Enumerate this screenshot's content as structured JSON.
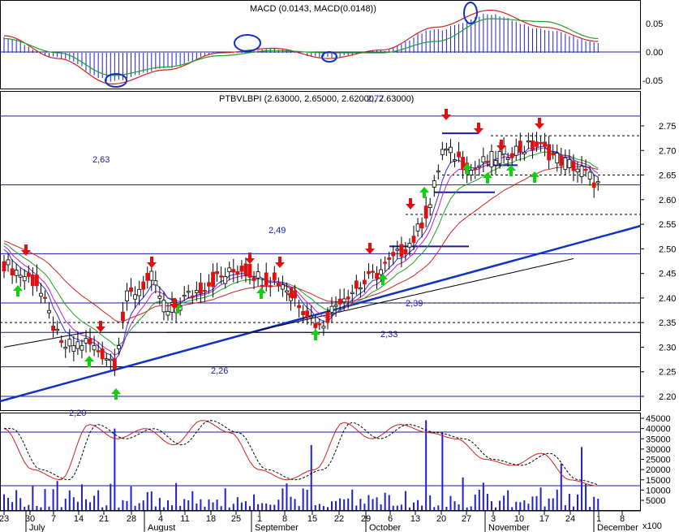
{
  "colors": {
    "hline": "#1a1aa6",
    "trend": "#1030c8",
    "ma_blue": "#3030e0",
    "ma_magenta": "#c020c0",
    "ma_green": "#20a020",
    "ma_red": "#d02020",
    "ma_black": "#000000",
    "candle_down": "#e01010",
    "volume": "#2020d0",
    "arrow_up": "#10d010",
    "arrow_down": "#e01010"
  },
  "macd_panel": {
    "title": "MACD (0.0143, MACD(0.0148))",
    "ticks": [
      "0.05",
      "0.00",
      "-0.05"
    ]
  },
  "price_panel": {
    "title": "PTBVLBPI (2.63000, 2.65000, 2.62000, 2.63000)",
    "ticks": [
      "2.75",
      "2.70",
      "2.65",
      "2.60",
      "2.55",
      "2.50",
      "2.45",
      "2.40",
      "2.35",
      "2.30",
      "2.25",
      "2.20"
    ],
    "level_labels": [
      "2,63",
      "2,49",
      "2,39",
      "2,33",
      "2,26",
      "2,20",
      "2,77"
    ]
  },
  "volume_panel": {
    "ticks": [
      "45000",
      "40000",
      "35000",
      "30000",
      "25000",
      "20000",
      "15000",
      "10000",
      "5000"
    ],
    "unit": "x100"
  },
  "x_axis": {
    "day_labels": [
      "23",
      "30",
      "7",
      "14",
      "21",
      "28",
      "4",
      "11",
      "18",
      "25",
      "1",
      "8",
      "15",
      "22",
      "29",
      "6",
      "13",
      "20",
      "27",
      "3",
      "10",
      "17",
      "24",
      "1",
      "8"
    ],
    "month_labels": [
      "July",
      "August",
      "September",
      "October",
      "November",
      "December"
    ]
  },
  "chart_data": [
    {
      "type": "line",
      "title": "MACD (0.0143, MACD(0.0148))",
      "ylim": [
        -0.07,
        0.09
      ],
      "x": [
        "Jun 23",
        "Jul 7",
        "Jul 21",
        "Aug 4",
        "Aug 18",
        "Sep 1",
        "Sep 15",
        "Sep 29",
        "Oct 13",
        "Oct 27",
        "Nov 10",
        "Nov 24"
      ],
      "series": [
        {
          "name": "MACD",
          "values": [
            0.03,
            -0.01,
            -0.055,
            -0.03,
            0.0,
            0.008,
            -0.01,
            0.005,
            0.045,
            0.075,
            0.045,
            0.02
          ]
        },
        {
          "name": "Signal",
          "values": [
            0.025,
            0.0,
            -0.04,
            -0.025,
            -0.005,
            0.004,
            0.0,
            0.0,
            0.02,
            0.06,
            0.055,
            0.025
          ]
        }
      ]
    },
    {
      "type": "candlestick",
      "title": "PTBVLBPI (2.63000, 2.65000, 2.62000, 2.63000)",
      "ylim": [
        2.18,
        2.79
      ],
      "x": [
        "Jun 23",
        "Jul 7",
        "Jul 14",
        "Jul 21",
        "Jul 28",
        "Aug 4",
        "Aug 11",
        "Aug 18",
        "Aug 25",
        "Sep 1",
        "Sep 8",
        "Sep 15",
        "Sep 22",
        "Sep 29",
        "Oct 6",
        "Oct 13",
        "Oct 20",
        "Oct 27",
        "Nov 3",
        "Nov 10",
        "Nov 17",
        "Nov 24"
      ],
      "close": [
        2.47,
        2.4,
        2.29,
        2.27,
        2.41,
        2.38,
        2.42,
        2.45,
        2.47,
        2.44,
        2.41,
        2.34,
        2.41,
        2.44,
        2.5,
        2.57,
        2.7,
        2.67,
        2.7,
        2.7,
        2.69,
        2.63
      ],
      "horizontal_levels": [
        2.77,
        2.63,
        2.49,
        2.39,
        2.33,
        2.26,
        2.2
      ],
      "level_labels": [
        "2,63",
        "2,49",
        "2,39",
        "2,33",
        "2,26",
        "2,20",
        "2,77"
      ]
    },
    {
      "type": "bar",
      "title": "Volume",
      "ylim": [
        0,
        50000
      ],
      "categories": [
        "Jul 21",
        "Sep 15",
        "Oct 13",
        "Oct 20",
        "Nov 20",
        "Nov 24"
      ],
      "values": [
        40000,
        32000,
        44000,
        38000,
        23000,
        31000
      ]
    }
  ]
}
